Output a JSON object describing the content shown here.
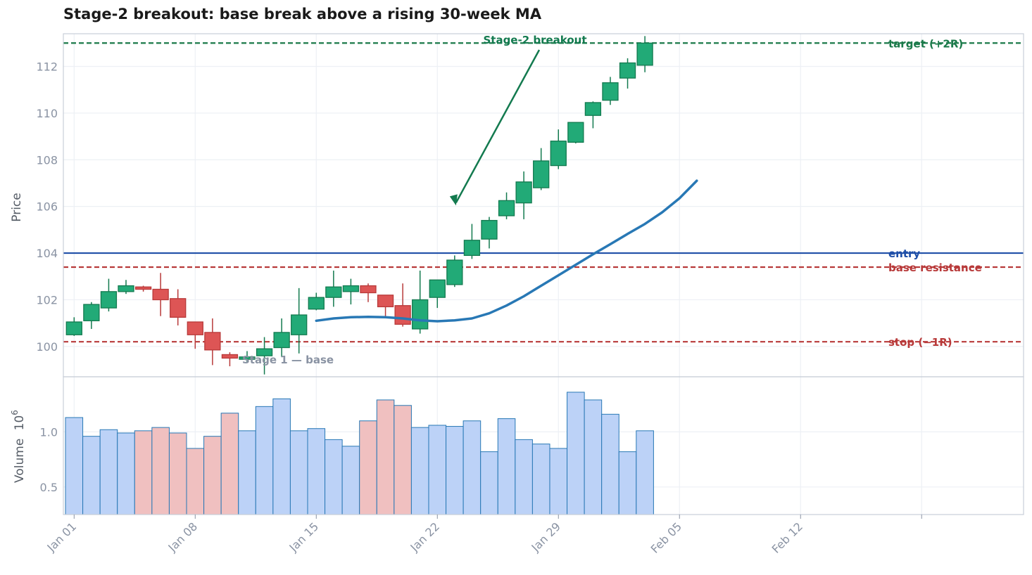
{
  "chart_data": {
    "type": "candlestick",
    "title": "Stage-2 breakout: base break above a rising 30-week MA",
    "price_panel": {
      "ylabel": "Price",
      "ylim": [
        98.7,
        113.4
      ],
      "yticks": [
        100,
        102,
        104,
        106,
        108,
        110,
        112
      ],
      "grid": true
    },
    "volume_panel": {
      "ylabel": "Volume",
      "ylabel_exponent": "6",
      "ylim": [
        0.25,
        1.5
      ],
      "yticks": [
        0.5,
        1.0
      ],
      "ytick_labels": [
        "0.5",
        "1.0"
      ],
      "grid": true
    },
    "x_ticks": [
      {
        "day": 0,
        "label": "Jan 01"
      },
      {
        "day": 7,
        "label": "Jan 08"
      },
      {
        "day": 14,
        "label": "Jan 15"
      },
      {
        "day": 21,
        "label": "Jan 22"
      },
      {
        "day": 28,
        "label": "Jan 29"
      },
      {
        "day": 35,
        "label": "Feb 05"
      },
      {
        "day": 42,
        "label": "Feb 12"
      },
      {
        "day": 49,
        "label": ""
      }
    ],
    "candles": [
      {
        "day": 0,
        "open": 100.5,
        "high": 101.25,
        "low": 100.45,
        "close": 101.05
      },
      {
        "day": 1,
        "open": 101.1,
        "high": 101.9,
        "low": 100.75,
        "close": 101.8
      },
      {
        "day": 2,
        "open": 101.65,
        "high": 102.9,
        "low": 101.5,
        "close": 102.35
      },
      {
        "day": 3,
        "open": 102.35,
        "high": 102.85,
        "low": 102.25,
        "close": 102.6
      },
      {
        "day": 4,
        "open": 102.55,
        "high": 102.6,
        "low": 102.35,
        "close": 102.45
      },
      {
        "day": 5,
        "open": 102.45,
        "high": 103.15,
        "low": 101.3,
        "close": 102.0
      },
      {
        "day": 6,
        "open": 102.05,
        "high": 102.45,
        "low": 100.9,
        "close": 101.25
      },
      {
        "day": 7,
        "open": 101.05,
        "high": 101.05,
        "low": 99.9,
        "close": 100.5
      },
      {
        "day": 8,
        "open": 100.6,
        "high": 101.2,
        "low": 99.2,
        "close": 99.85
      },
      {
        "day": 9,
        "open": 99.65,
        "high": 99.75,
        "low": 99.15,
        "close": 99.5
      },
      {
        "day": 10,
        "open": 99.45,
        "high": 99.8,
        "low": 99.3,
        "close": 99.55
      },
      {
        "day": 11,
        "open": 99.6,
        "high": 100.4,
        "low": 98.8,
        "close": 99.9
      },
      {
        "day": 12,
        "open": 99.95,
        "high": 101.2,
        "low": 99.55,
        "close": 100.6
      },
      {
        "day": 13,
        "open": 100.5,
        "high": 102.5,
        "low": 99.7,
        "close": 101.35
      },
      {
        "day": 14,
        "open": 101.6,
        "high": 102.3,
        "low": 101.55,
        "close": 102.1
      },
      {
        "day": 15,
        "open": 102.1,
        "high": 103.25,
        "low": 101.7,
        "close": 102.55
      },
      {
        "day": 16,
        "open": 102.35,
        "high": 102.9,
        "low": 101.8,
        "close": 102.6
      },
      {
        "day": 17,
        "open": 102.6,
        "high": 102.7,
        "low": 101.9,
        "close": 102.3
      },
      {
        "day": 18,
        "open": 102.2,
        "high": 102.2,
        "low": 101.25,
        "close": 101.7
      },
      {
        "day": 19,
        "open": 101.75,
        "high": 102.7,
        "low": 100.85,
        "close": 100.95
      },
      {
        "day": 20,
        "open": 100.75,
        "high": 103.25,
        "low": 100.55,
        "close": 102.0
      },
      {
        "day": 21,
        "open": 102.1,
        "high": 102.85,
        "low": 101.65,
        "close": 102.85
      },
      {
        "day": 22,
        "open": 102.65,
        "high": 103.9,
        "low": 102.55,
        "close": 103.7
      },
      {
        "day": 23,
        "open": 103.9,
        "high": 105.25,
        "low": 103.75,
        "close": 104.55
      },
      {
        "day": 24,
        "open": 104.6,
        "high": 105.55,
        "low": 104.2,
        "close": 105.4
      },
      {
        "day": 25,
        "open": 105.6,
        "high": 106.6,
        "low": 105.45,
        "close": 106.25
      },
      {
        "day": 26,
        "open": 106.15,
        "high": 107.5,
        "low": 105.45,
        "close": 107.05
      },
      {
        "day": 27,
        "open": 106.8,
        "high": 108.5,
        "low": 106.7,
        "close": 107.95
      },
      {
        "day": 28,
        "open": 107.75,
        "high": 109.3,
        "low": 107.6,
        "close": 108.8
      },
      {
        "day": 29,
        "open": 108.75,
        "high": 109.6,
        "low": 108.7,
        "close": 109.6
      },
      {
        "day": 30,
        "open": 109.9,
        "high": 110.5,
        "low": 109.35,
        "close": 110.45
      },
      {
        "day": 31,
        "open": 110.55,
        "high": 111.55,
        "low": 110.35,
        "close": 111.3
      },
      {
        "day": 32,
        "open": 111.5,
        "high": 112.35,
        "low": 111.05,
        "close": 112.15
      },
      {
        "day": 33,
        "open": 112.05,
        "high": 113.3,
        "low": 111.75,
        "close": 113.0
      }
    ],
    "moving_average": {
      "name": "30-week MA",
      "color": "#2878b5",
      "points": [
        {
          "day": 14,
          "value": 101.1
        },
        {
          "day": 15,
          "value": 101.2
        },
        {
          "day": 16,
          "value": 101.25
        },
        {
          "day": 17,
          "value": 101.27
        },
        {
          "day": 18,
          "value": 101.25
        },
        {
          "day": 19,
          "value": 101.2
        },
        {
          "day": 20,
          "value": 101.12
        },
        {
          "day": 21,
          "value": 101.08
        },
        {
          "day": 22,
          "value": 101.12
        },
        {
          "day": 23,
          "value": 101.2
        },
        {
          "day": 24,
          "value": 101.42
        },
        {
          "day": 25,
          "value": 101.75
        },
        {
          "day": 26,
          "value": 102.15
        },
        {
          "day": 27,
          "value": 102.6
        },
        {
          "day": 28,
          "value": 103.05
        },
        {
          "day": 29,
          "value": 103.5
        },
        {
          "day": 30,
          "value": 103.95
        },
        {
          "day": 31,
          "value": 104.38
        },
        {
          "day": 32,
          "value": 104.82
        },
        {
          "day": 33,
          "value": 105.25
        },
        {
          "day": 34,
          "value": 105.75
        },
        {
          "day": 35,
          "value": 106.35
        },
        {
          "day": 36,
          "value": 107.1
        }
      ]
    },
    "levels": [
      {
        "name": "target  (+2R)",
        "value": 113.0,
        "color": "#1b7a4a",
        "style": "dashed"
      },
      {
        "name": "entry",
        "value": 104.0,
        "color": "#1f4fa8",
        "style": "solid"
      },
      {
        "name": "base resistance",
        "value": 103.4,
        "color": "#b83a3a",
        "style": "dashed"
      },
      {
        "name": "stop  (−1R)",
        "value": 100.2,
        "color": "#b83a3a",
        "style": "dashed"
      }
    ],
    "annotations": [
      {
        "text": "Stage-2 breakout",
        "arrow_to_day": 22,
        "arrow_to_value": 106.1,
        "color": "#137a4f"
      },
      {
        "text": "Stage 1 — base",
        "color": "#8a93a3"
      }
    ],
    "volume": [
      {
        "day": 0,
        "value": 1.13,
        "color": "up"
      },
      {
        "day": 1,
        "value": 0.96,
        "color": "up"
      },
      {
        "day": 2,
        "value": 1.02,
        "color": "up"
      },
      {
        "day": 3,
        "value": 0.99,
        "color": "up"
      },
      {
        "day": 4,
        "value": 1.01,
        "color": "down"
      },
      {
        "day": 5,
        "value": 1.04,
        "color": "down"
      },
      {
        "day": 6,
        "value": 0.99,
        "color": "down"
      },
      {
        "day": 7,
        "value": 0.85,
        "color": "down"
      },
      {
        "day": 8,
        "value": 0.96,
        "color": "down"
      },
      {
        "day": 9,
        "value": 1.17,
        "color": "down"
      },
      {
        "day": 10,
        "value": 1.01,
        "color": "up"
      },
      {
        "day": 11,
        "value": 1.23,
        "color": "up"
      },
      {
        "day": 12,
        "value": 1.3,
        "color": "up"
      },
      {
        "day": 13,
        "value": 1.01,
        "color": "up"
      },
      {
        "day": 14,
        "value": 1.03,
        "color": "up"
      },
      {
        "day": 15,
        "value": 0.93,
        "color": "up"
      },
      {
        "day": 16,
        "value": 0.87,
        "color": "up"
      },
      {
        "day": 17,
        "value": 1.1,
        "color": "down"
      },
      {
        "day": 18,
        "value": 1.29,
        "color": "down"
      },
      {
        "day": 19,
        "value": 1.24,
        "color": "down"
      },
      {
        "day": 20,
        "value": 1.04,
        "color": "up"
      },
      {
        "day": 21,
        "value": 1.06,
        "color": "up"
      },
      {
        "day": 22,
        "value": 1.05,
        "color": "up"
      },
      {
        "day": 23,
        "value": 1.1,
        "color": "up"
      },
      {
        "day": 24,
        "value": 0.82,
        "color": "up"
      },
      {
        "day": 25,
        "value": 1.12,
        "color": "up"
      },
      {
        "day": 26,
        "value": 0.93,
        "color": "up"
      },
      {
        "day": 27,
        "value": 0.89,
        "color": "up"
      },
      {
        "day": 28,
        "value": 0.85,
        "color": "up"
      },
      {
        "day": 29,
        "value": 1.36,
        "color": "up"
      },
      {
        "day": 30,
        "value": 1.29,
        "color": "up"
      },
      {
        "day": 31,
        "value": 1.16,
        "color": "up"
      },
      {
        "day": 32,
        "value": 0.82,
        "color": "up"
      },
      {
        "day": 33,
        "value": 1.01,
        "color": "up"
      }
    ],
    "colors": {
      "up_fill": "#22aa77",
      "up_edge": "#137a4f",
      "down_fill": "#dd5555",
      "down_edge": "#b83a3a",
      "volume_up": "#bcd2f7",
      "volume_down": "#f0c0c0",
      "volume_edge": "#2878b5",
      "grid": "#edf0f5",
      "frame": "#c8ced8"
    }
  }
}
